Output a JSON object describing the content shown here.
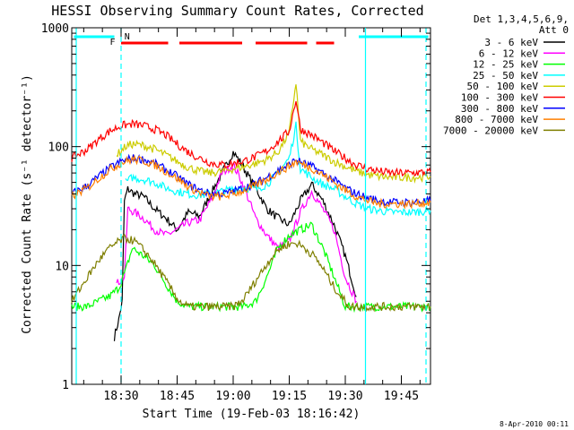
{
  "chart_data": {
    "type": "line",
    "title": "HESSI Observing Summary Count Rates, Corrected",
    "xlabel": "Start Time (19-Feb-03 18:16:42)",
    "ylabel": "Corrected Count Rate (s⁻¹ detector⁻¹)",
    "y_scale": "log",
    "ylim": [
      1,
      1000
    ],
    "xlim_minutes": [
      18.28,
      19.88
    ],
    "x_ticks": [
      {
        "t": 18.5,
        "label": "18:30"
      },
      {
        "t": 18.75,
        "label": "18:45"
      },
      {
        "t": 19.0,
        "label": "19:00"
      },
      {
        "t": 19.25,
        "label": "19:15"
      },
      {
        "t": 19.5,
        "label": "19:30"
      },
      {
        "t": 19.75,
        "label": "19:45"
      }
    ],
    "y_ticks": [
      {
        "v": 1,
        "label": "1"
      },
      {
        "v": 10,
        "label": "10"
      },
      {
        "v": 100,
        "label": "100"
      },
      {
        "v": 1000,
        "label": "1000"
      }
    ],
    "legend_header": [
      "Det 1,3,4,5,6,9,",
      "Att 0"
    ],
    "legend_position": "right",
    "flags": [
      {
        "label": "F",
        "color": "#ff0000"
      },
      {
        "label": "N",
        "color": "#00ffff"
      }
    ],
    "series": [
      {
        "name": "3 - 6 keV",
        "color": "#000000",
        "points": [
          [
            18.47,
            2.5
          ],
          [
            18.49,
            3.5
          ],
          [
            18.505,
            5
          ],
          [
            18.515,
            35
          ],
          [
            18.53,
            44
          ],
          [
            18.56,
            40
          ],
          [
            18.6,
            38
          ],
          [
            18.65,
            30
          ],
          [
            18.7,
            25
          ],
          [
            18.75,
            20
          ],
          [
            18.8,
            28
          ],
          [
            18.85,
            26
          ],
          [
            18.9,
            40
          ],
          [
            18.95,
            60
          ],
          [
            19.0,
            90
          ],
          [
            19.03,
            75
          ],
          [
            19.06,
            60
          ],
          [
            19.1,
            45
          ],
          [
            19.15,
            30
          ],
          [
            19.2,
            25
          ],
          [
            19.25,
            22
          ],
          [
            19.3,
            35
          ],
          [
            19.35,
            48
          ],
          [
            19.4,
            35
          ],
          [
            19.45,
            22
          ],
          [
            19.5,
            12
          ],
          [
            19.55,
            5.5
          ]
        ]
      },
      {
        "name": "6 - 12 keV",
        "color": "#ff00ff",
        "points": [
          [
            18.48,
            7
          ],
          [
            18.515,
            8
          ],
          [
            18.53,
            30
          ],
          [
            18.56,
            28
          ],
          [
            18.6,
            25
          ],
          [
            18.65,
            20
          ],
          [
            18.7,
            18
          ],
          [
            18.75,
            20
          ],
          [
            18.8,
            23
          ],
          [
            18.85,
            24
          ],
          [
            18.9,
            35
          ],
          [
            18.95,
            60
          ],
          [
            19.0,
            70
          ],
          [
            19.03,
            55
          ],
          [
            19.06,
            40
          ],
          [
            19.1,
            25
          ],
          [
            19.15,
            18
          ],
          [
            19.2,
            14
          ],
          [
            19.25,
            16
          ],
          [
            19.3,
            28
          ],
          [
            19.35,
            42
          ],
          [
            19.4,
            30
          ],
          [
            19.45,
            20
          ],
          [
            19.5,
            8
          ],
          [
            19.55,
            5
          ]
        ]
      },
      {
        "name": "12 - 25 keV",
        "color": "#00ff00",
        "points": [
          [
            18.28,
            4.5
          ],
          [
            18.35,
            4.5
          ],
          [
            18.4,
            5
          ],
          [
            18.45,
            5.5
          ],
          [
            18.49,
            6.5
          ],
          [
            18.52,
            9
          ],
          [
            18.55,
            14
          ],
          [
            18.6,
            12
          ],
          [
            18.65,
            10
          ],
          [
            18.7,
            7
          ],
          [
            18.75,
            5
          ],
          [
            18.8,
            4.5
          ],
          [
            18.85,
            4.5
          ],
          [
            18.9,
            4.5
          ],
          [
            18.95,
            4.5
          ],
          [
            19.0,
            4.5
          ],
          [
            19.05,
            4.5
          ],
          [
            19.1,
            5
          ],
          [
            19.15,
            8
          ],
          [
            19.2,
            14
          ],
          [
            19.25,
            18
          ],
          [
            19.3,
            20
          ],
          [
            19.35,
            22
          ],
          [
            19.4,
            14
          ],
          [
            19.45,
            8
          ],
          [
            19.5,
            4.5
          ],
          [
            19.55,
            4.5
          ],
          [
            19.65,
            4.5
          ],
          [
            19.75,
            4.5
          ],
          [
            19.88,
            4.5
          ]
        ]
      },
      {
        "name": "25 - 50 keV",
        "color": "#00ffff",
        "points": [
          [
            18.52,
            50
          ],
          [
            18.55,
            55
          ],
          [
            18.6,
            53
          ],
          [
            18.65,
            50
          ],
          [
            18.7,
            45
          ],
          [
            18.75,
            42
          ],
          [
            18.8,
            40
          ],
          [
            18.85,
            39
          ],
          [
            18.9,
            40
          ],
          [
            18.95,
            42
          ],
          [
            19.0,
            44
          ],
          [
            19.05,
            45
          ],
          [
            19.1,
            44
          ],
          [
            19.15,
            48
          ],
          [
            19.2,
            60
          ],
          [
            19.25,
            80
          ],
          [
            19.28,
            150
          ],
          [
            19.3,
            65
          ],
          [
            19.35,
            55
          ],
          [
            19.4,
            48
          ],
          [
            19.45,
            44
          ],
          [
            19.5,
            38
          ],
          [
            19.55,
            33
          ],
          [
            19.6,
            30
          ],
          [
            19.65,
            29
          ],
          [
            19.7,
            28
          ],
          [
            19.75,
            28
          ],
          [
            19.8,
            28
          ],
          [
            19.88,
            29
          ]
        ]
      },
      {
        "name": "50 - 100 keV",
        "color": "#cccc00",
        "points": [
          [
            18.48,
            85
          ],
          [
            18.52,
            100
          ],
          [
            18.55,
            105
          ],
          [
            18.6,
            102
          ],
          [
            18.65,
            95
          ],
          [
            18.7,
            85
          ],
          [
            18.75,
            75
          ],
          [
            18.8,
            67
          ],
          [
            18.85,
            62
          ],
          [
            18.9,
            60
          ],
          [
            18.95,
            62
          ],
          [
            19.0,
            65
          ],
          [
            19.05,
            68
          ],
          [
            19.1,
            72
          ],
          [
            19.15,
            78
          ],
          [
            19.2,
            90
          ],
          [
            19.25,
            130
          ],
          [
            19.28,
            350
          ],
          [
            19.3,
            110
          ],
          [
            19.35,
            95
          ],
          [
            19.4,
            85
          ],
          [
            19.45,
            75
          ],
          [
            19.5,
            68
          ],
          [
            19.55,
            62
          ],
          [
            19.6,
            58
          ],
          [
            19.65,
            56
          ],
          [
            19.7,
            55
          ],
          [
            19.75,
            55
          ],
          [
            19.8,
            55
          ],
          [
            19.88,
            56
          ]
        ]
      },
      {
        "name": "100 - 300 keV",
        "color": "#ff0000",
        "points": [
          [
            18.28,
            80
          ],
          [
            18.35,
            95
          ],
          [
            18.4,
            115
          ],
          [
            18.45,
            135
          ],
          [
            18.5,
            150
          ],
          [
            18.55,
            155
          ],
          [
            18.6,
            150
          ],
          [
            18.65,
            140
          ],
          [
            18.7,
            125
          ],
          [
            18.75,
            105
          ],
          [
            18.8,
            90
          ],
          [
            18.85,
            80
          ],
          [
            18.9,
            73
          ],
          [
            18.95,
            70
          ],
          [
            19.0,
            72
          ],
          [
            19.05,
            76
          ],
          [
            19.1,
            82
          ],
          [
            19.15,
            92
          ],
          [
            19.2,
            110
          ],
          [
            19.25,
            135
          ],
          [
            19.28,
            250
          ],
          [
            19.3,
            140
          ],
          [
            19.35,
            125
          ],
          [
            19.4,
            108
          ],
          [
            19.45,
            92
          ],
          [
            19.5,
            80
          ],
          [
            19.55,
            70
          ],
          [
            19.6,
            65
          ],
          [
            19.65,
            62
          ],
          [
            19.7,
            60
          ],
          [
            19.75,
            60
          ],
          [
            19.8,
            60
          ],
          [
            19.88,
            61
          ]
        ]
      },
      {
        "name": "300 - 800 keV",
        "color": "#0000ff",
        "points": [
          [
            18.28,
            40
          ],
          [
            18.35,
            47
          ],
          [
            18.4,
            56
          ],
          [
            18.45,
            66
          ],
          [
            18.5,
            75
          ],
          [
            18.55,
            80
          ],
          [
            18.6,
            78
          ],
          [
            18.65,
            72
          ],
          [
            18.7,
            64
          ],
          [
            18.75,
            56
          ],
          [
            18.8,
            48
          ],
          [
            18.85,
            43
          ],
          [
            18.9,
            40
          ],
          [
            18.95,
            40
          ],
          [
            19.0,
            42
          ],
          [
            19.05,
            45
          ],
          [
            19.1,
            49
          ],
          [
            19.15,
            55
          ],
          [
            19.2,
            63
          ],
          [
            19.25,
            70
          ],
          [
            19.28,
            78
          ],
          [
            19.3,
            74
          ],
          [
            19.35,
            68
          ],
          [
            19.4,
            60
          ],
          [
            19.45,
            52
          ],
          [
            19.5,
            45
          ],
          [
            19.55,
            40
          ],
          [
            19.6,
            37
          ],
          [
            19.65,
            35
          ],
          [
            19.7,
            34
          ],
          [
            19.75,
            34
          ],
          [
            19.8,
            34
          ],
          [
            19.88,
            35
          ]
        ]
      },
      {
        "name": "800 - 7000 keV",
        "color": "#ff7f00",
        "points": [
          [
            18.28,
            38
          ],
          [
            18.35,
            45
          ],
          [
            18.4,
            54
          ],
          [
            18.45,
            64
          ],
          [
            18.5,
            73
          ],
          [
            18.55,
            78
          ],
          [
            18.6,
            76
          ],
          [
            18.65,
            70
          ],
          [
            18.7,
            62
          ],
          [
            18.75,
            54
          ],
          [
            18.8,
            46
          ],
          [
            18.85,
            41
          ],
          [
            18.9,
            38
          ],
          [
            18.95,
            38
          ],
          [
            19.0,
            40
          ],
          [
            19.05,
            43
          ],
          [
            19.1,
            47
          ],
          [
            19.15,
            53
          ],
          [
            19.2,
            61
          ],
          [
            19.25,
            68
          ],
          [
            19.28,
            75
          ],
          [
            19.3,
            72
          ],
          [
            19.35,
            66
          ],
          [
            19.4,
            58
          ],
          [
            19.45,
            50
          ],
          [
            19.5,
            43
          ],
          [
            19.55,
            38
          ],
          [
            19.6,
            35
          ],
          [
            19.65,
            33
          ],
          [
            19.7,
            33
          ],
          [
            19.75,
            33
          ],
          [
            19.8,
            33
          ],
          [
            19.88,
            34
          ]
        ]
      },
      {
        "name": "7000 - 20000 keV",
        "color": "#7f7f00",
        "points": [
          [
            18.28,
            5
          ],
          [
            18.32,
            6.5
          ],
          [
            18.36,
            8.5
          ],
          [
            18.4,
            11
          ],
          [
            18.44,
            13.5
          ],
          [
            18.48,
            15.5
          ],
          [
            18.52,
            17
          ],
          [
            18.56,
            16
          ],
          [
            18.6,
            13.5
          ],
          [
            18.64,
            11
          ],
          [
            18.68,
            8.5
          ],
          [
            18.72,
            6.5
          ],
          [
            18.76,
            5
          ],
          [
            18.8,
            4.5
          ],
          [
            18.85,
            4.5
          ],
          [
            18.9,
            4.5
          ],
          [
            18.95,
            4.5
          ],
          [
            19.0,
            4.5
          ],
          [
            19.04,
            5
          ],
          [
            19.08,
            6.5
          ],
          [
            19.12,
            8.5
          ],
          [
            19.16,
            11
          ],
          [
            19.2,
            13.5
          ],
          [
            19.24,
            15
          ],
          [
            19.28,
            15.5
          ],
          [
            19.32,
            14
          ],
          [
            19.36,
            12
          ],
          [
            19.4,
            9.5
          ],
          [
            19.44,
            7
          ],
          [
            19.48,
            5.5
          ],
          [
            19.52,
            4.5
          ],
          [
            19.6,
            4.5
          ],
          [
            19.7,
            4.5
          ],
          [
            19.8,
            4.5
          ],
          [
            19.88,
            4.5
          ]
        ]
      }
    ]
  },
  "footer_date": "8-Apr-2010 00:11"
}
